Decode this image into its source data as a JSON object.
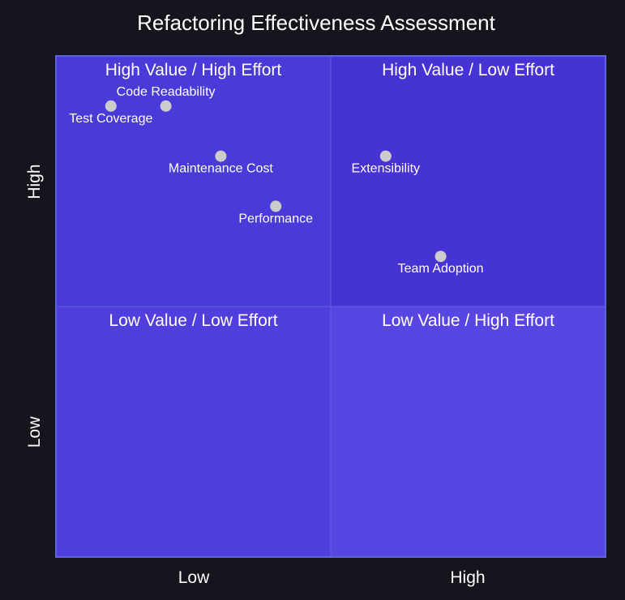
{
  "chart_data": {
    "type": "scatter",
    "subtype": "quadrant",
    "title": "Refactoring Effectiveness Assessment",
    "x_axis": {
      "low": "Low",
      "high": "High"
    },
    "y_axis": {
      "low": "Low",
      "high": "High"
    },
    "xlim": [
      0,
      1
    ],
    "ylim": [
      0,
      1
    ],
    "quadrants": {
      "top_left": {
        "label": "High Value / High Effort",
        "color": "#4a3ad8"
      },
      "top_right": {
        "label": "High Value / Low Effort",
        "color": "#4533d3"
      },
      "bottom_left": {
        "label": "Low Value / Low Effort",
        "color": "#503fdd"
      },
      "bottom_right": {
        "label": "Low Value / High Effort",
        "color": "#5846e2"
      }
    },
    "points": [
      {
        "label": "Test Coverage",
        "x": 0.1,
        "y": 0.9
      },
      {
        "label": "Code Readability",
        "x": 0.2,
        "y": 0.9
      },
      {
        "label": "Maintenance Cost",
        "x": 0.3,
        "y": 0.8
      },
      {
        "label": "Performance",
        "x": 0.4,
        "y": 0.7
      },
      {
        "label": "Extensibility",
        "x": 0.6,
        "y": 0.8
      },
      {
        "label": "Team Adoption",
        "x": 0.7,
        "y": 0.6
      }
    ],
    "colors": {
      "background": "#16151d",
      "border": "#5d63de",
      "point": "#cccccc",
      "text": "#ffffff"
    }
  }
}
